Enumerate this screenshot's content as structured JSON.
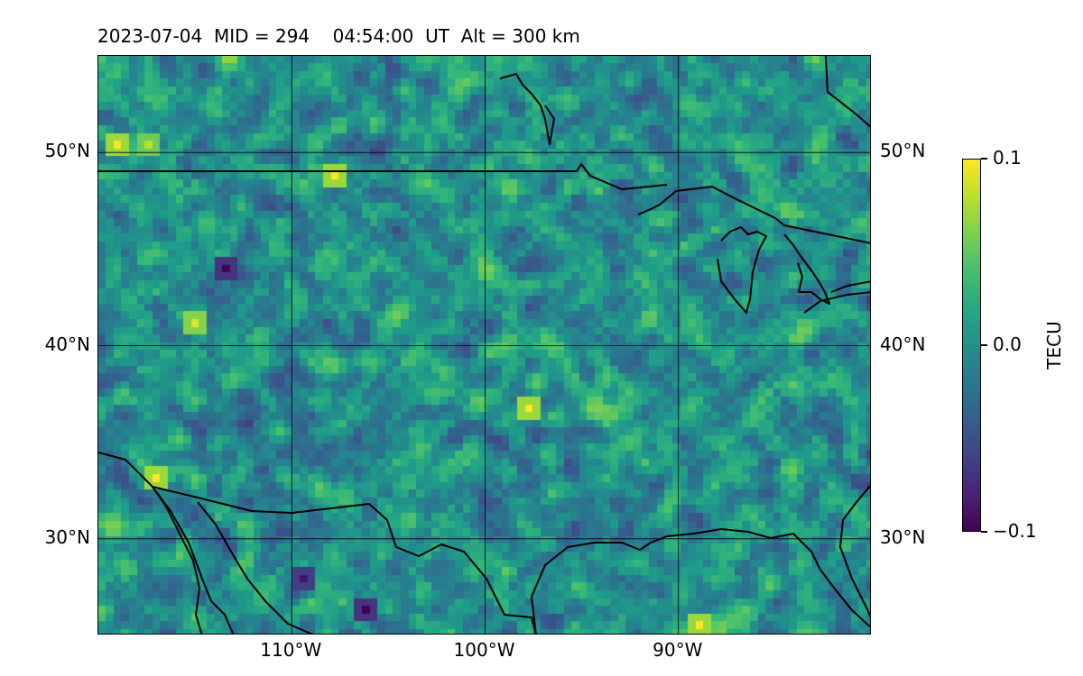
{
  "header": {
    "title": "2023-07-04  MID = 294    04:54:00  UT  Alt = 300 km"
  },
  "map": {
    "projection": "equirectangular",
    "lon_range": [
      -120,
      -80
    ],
    "lat_range": [
      25,
      55
    ],
    "lat_ticks": [
      {
        "value": 50,
        "label": "50°N"
      },
      {
        "value": 40,
        "label": "40°N"
      },
      {
        "value": 30,
        "label": "30°N"
      }
    ],
    "lon_ticks": [
      {
        "value": -110,
        "label": "110°W"
      },
      {
        "value": -100,
        "label": "100°W"
      },
      {
        "value": -90,
        "label": "90°W"
      }
    ],
    "gridlines": true,
    "coastlines": true,
    "borders": true,
    "field": "TEC perturbation",
    "features": [
      {
        "lat": 50.2,
        "lon": -119.0,
        "value": 0.1
      },
      {
        "lat": 50.3,
        "lon": -117.5,
        "value": 0.08
      },
      {
        "lat": 48.6,
        "lon": -107.7,
        "value": 0.1
      },
      {
        "lat": 44.0,
        "lon": -113.5,
        "value": -0.1
      },
      {
        "lat": 41.3,
        "lon": -114.8,
        "value": 0.09
      },
      {
        "lat": 36.6,
        "lon": -97.7,
        "value": 0.1
      },
      {
        "lat": 33.0,
        "lon": -117.0,
        "value": 0.1
      },
      {
        "lat": 28.0,
        "lon": -109.3,
        "value": -0.09
      },
      {
        "lat": 26.2,
        "lon": -106.3,
        "value": -0.1
      },
      {
        "lat": 25.5,
        "lon": -88.7,
        "value": 0.1
      },
      {
        "lat": 41.0,
        "lon": -89.4,
        "value": 0.04
      }
    ]
  },
  "colorbar": {
    "label": "TECU",
    "colormap": "viridis",
    "vmin": -0.1,
    "vmax": 0.1,
    "ticks": [
      {
        "value": 0.1,
        "label": "0.1"
      },
      {
        "value": 0.0,
        "label": "0.0"
      },
      {
        "value": -0.1,
        "label": "−0.1"
      }
    ]
  }
}
